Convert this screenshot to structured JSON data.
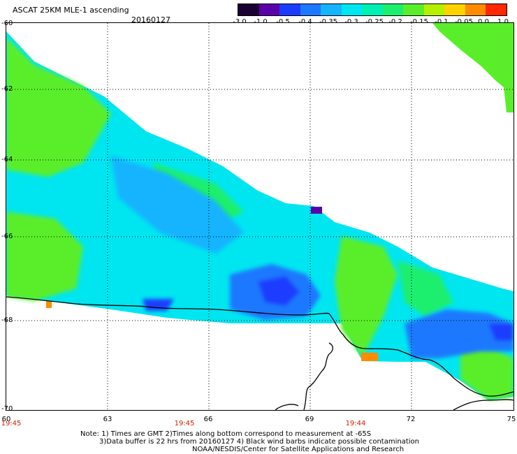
{
  "header": {
    "title": "ASCAT 25KM MLE-1 ascending",
    "date": "20160127"
  },
  "colorbar": {
    "labels": [
      "-3.0",
      "-1.0",
      "-0.5",
      "-0.4",
      "-0.35",
      "-0.3",
      "-0.25",
      "-0.2",
      "-0.15",
      "-0.1",
      "-0.05",
      "0.0",
      "1.0"
    ],
    "colors": [
      "#1a0033",
      "#5a00a8",
      "#1a3cff",
      "#1e78ff",
      "#14b4ff",
      "#00e6f0",
      "#00f0b4",
      "#1eee6e",
      "#5aee2a",
      "#b4f000",
      "#ffd200",
      "#ff8c00",
      "#ff2800"
    ]
  },
  "axes": {
    "y_ticks": [
      "-60",
      "-62",
      "-64",
      "-66",
      "-68",
      "-70"
    ],
    "x_ticks": [
      "60",
      "63",
      "66",
      "69",
      "72",
      "75"
    ],
    "time_labels": [
      "19:45",
      "19:45",
      "19:44"
    ]
  },
  "map_data": {
    "lon_range": [
      60,
      75
    ],
    "lat_range": [
      -60,
      -70
    ],
    "variable": "MLE-1",
    "swath": "ascending",
    "coastline": "black line",
    "gridlines": "dotted"
  },
  "notes": {
    "line1": "Note: 1) Times are GMT 2)Times along bottom correspond to measurement at -65S",
    "line2": "3)Data buffer is 22 hrs from 20160127 4) Black wind barbs indicate possible contamination",
    "line3": "NOAA/NESDIS/Center for Satellite Applications and Research"
  }
}
